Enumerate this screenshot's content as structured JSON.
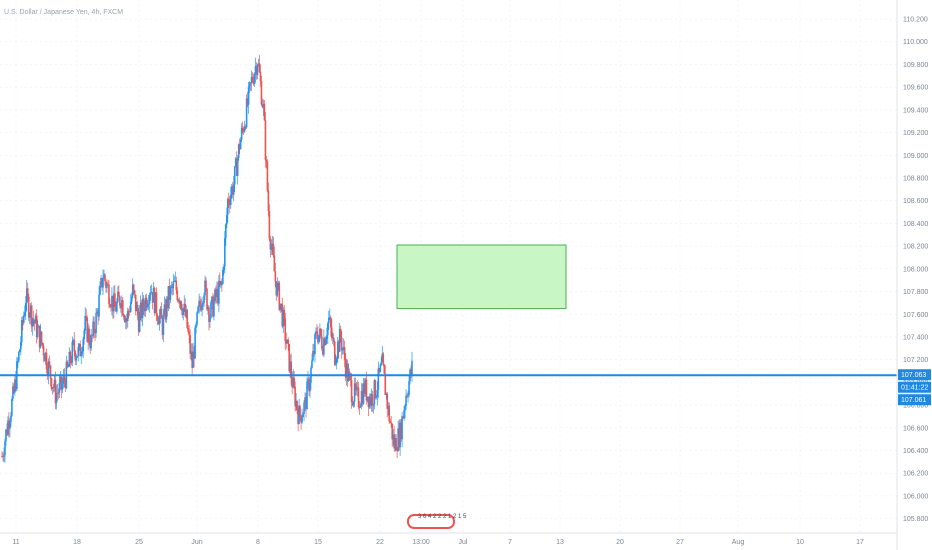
{
  "header": {
    "title": "U.S. Dollar / Japanese Yen, 4h, FXCM"
  },
  "colors": {
    "up": "#2196f3",
    "down": "#ef5350",
    "level": "#1e88e5",
    "zone_fill": "#c8f7c5",
    "zone_border": "#4caf50",
    "axis_text": "#7d8491",
    "grid": "#e9ecef",
    "tag_bg": "#1e88e5"
  },
  "badge": {
    "icon": "event-calendar-icon",
    "text": "3 6 4 2 2 2 1 2 1 5",
    "color": "#ef5350"
  },
  "price_tags": [
    {
      "value": 107.063,
      "text": "107.063"
    },
    {
      "value": null,
      "text": "01:41:22"
    },
    {
      "value": 107.061,
      "text": "107.061"
    }
  ],
  "chart_data": {
    "type": "candlestick",
    "title": "U.S. Dollar / Japanese Yen, 4h, FXCM",
    "x_tick_labels": [
      "11",
      "18",
      "25",
      "Jun",
      "8",
      "15",
      "22",
      "13:00",
      "Jul",
      "7",
      "13",
      "20",
      "27",
      "Aug",
      "10",
      "17"
    ],
    "y_tick_labels": [
      "105.800",
      "106.000",
      "106.200",
      "106.400",
      "106.600",
      "106.800",
      "107.000",
      "107.200",
      "107.400",
      "107.600",
      "107.800",
      "108.000",
      "108.200",
      "108.400",
      "108.600",
      "108.800",
      "109.000",
      "109.200",
      "109.400",
      "109.600",
      "109.800",
      "110.000",
      "110.200"
    ],
    "ylim": [
      105.7,
      110.35
    ],
    "horizontal_level": 107.063,
    "zone": {
      "top": 108.21,
      "bottom": 107.65
    },
    "series": [
      {
        "name": "USDJPY",
        "path": [
          106.35,
          106.65,
          106.9,
          107.3,
          107.75,
          107.6,
          107.45,
          107.3,
          107.1,
          106.9,
          106.95,
          107.1,
          107.3,
          107.25,
          107.5,
          107.35,
          107.6,
          107.95,
          107.8,
          107.65,
          107.75,
          107.55,
          107.8,
          107.55,
          107.7,
          107.85,
          107.65,
          107.5,
          107.75,
          107.85,
          107.75,
          107.55,
          107.15,
          107.6,
          107.85,
          107.6,
          107.75,
          107.85,
          108.6,
          108.75,
          109.1,
          109.35,
          109.65,
          109.85,
          109.4,
          108.35,
          107.9,
          107.65,
          107.3,
          106.95,
          106.7,
          106.8,
          107.1,
          107.45,
          107.35,
          107.55,
          107.25,
          107.4,
          107.1,
          106.9,
          106.85,
          106.95,
          106.85,
          106.95,
          107.15,
          106.75,
          106.45,
          106.55,
          106.9,
          107.12
        ]
      }
    ]
  }
}
